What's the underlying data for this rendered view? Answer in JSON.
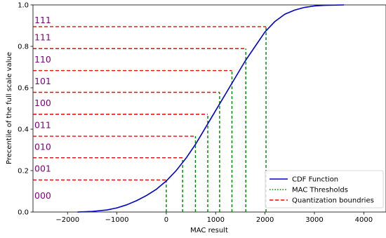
{
  "chart_data": {
    "type": "line",
    "xlabel": "MAC result",
    "ylabel": "Precentile of the full scale value",
    "xlim": [
      -2700,
      4450
    ],
    "ylim": [
      0.0,
      1.0
    ],
    "xticks": [
      -2000,
      -1000,
      0,
      1000,
      2000,
      3000,
      4000
    ],
    "xtick_labels": [
      "−2000",
      "−1000",
      "0",
      "1000",
      "2000",
      "3000",
      "4000"
    ],
    "yticks": [
      0.0,
      0.2,
      0.4,
      0.6,
      0.8,
      1.0
    ],
    "ytick_labels": [
      "0.0",
      "0.2",
      "0.4",
      "0.6",
      "0.8",
      "1.0"
    ],
    "grid": false,
    "legend_position": "lower-right",
    "series": [
      {
        "name": "CDF Function",
        "style": "solid",
        "color": "#0000cc",
        "x": [
          -1800,
          -1500,
          -1200,
          -1000,
          -800,
          -600,
          -400,
          -200,
          0,
          200,
          400,
          600,
          800,
          1000,
          1200,
          1400,
          1600,
          1800,
          2000,
          2200,
          2400,
          2600,
          2800,
          3000,
          3200,
          3400,
          3600
        ],
        "y": [
          0.0,
          0.003,
          0.01,
          0.02,
          0.035,
          0.055,
          0.08,
          0.11,
          0.15,
          0.2,
          0.26,
          0.33,
          0.41,
          0.49,
          0.57,
          0.65,
          0.73,
          0.8,
          0.87,
          0.92,
          0.955,
          0.975,
          0.988,
          0.995,
          0.998,
          0.999,
          1.0
        ]
      },
      {
        "name": "MAC Thresholds",
        "style": "dotted",
        "color": "#008000",
        "x": [
          0,
          330,
          590,
          840,
          1080,
          1330,
          1610,
          2020
        ]
      },
      {
        "name": "Quantization boundries",
        "style": "dashed",
        "color": "#ff0000",
        "y": [
          0.155,
          0.262,
          0.366,
          0.472,
          0.578,
          0.683,
          0.789,
          0.895
        ]
      }
    ],
    "annotations": [
      "000",
      "001",
      "010",
      "011",
      "100",
      "101",
      "110",
      "111",
      "111"
    ]
  }
}
